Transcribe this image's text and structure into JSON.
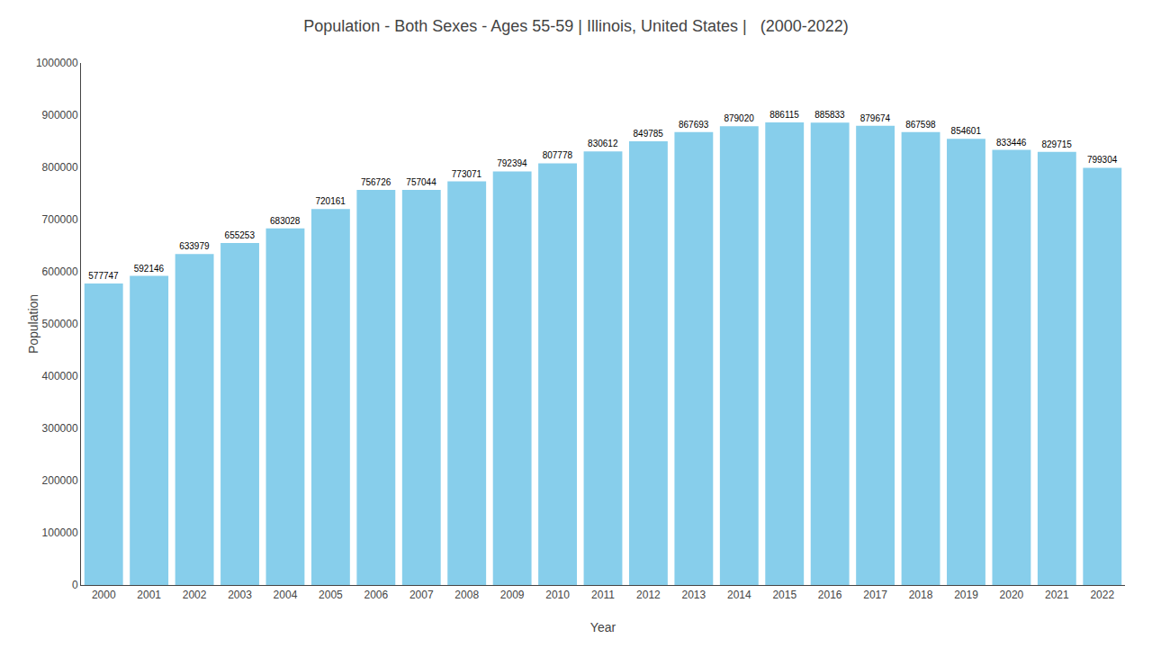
{
  "chart_data": {
    "type": "bar",
    "title": "Population - Both Sexes - Ages 55-59 | Illinois, United States |   (2000-2022)",
    "xlabel": "Year",
    "ylabel": "Population",
    "categories": [
      "2000",
      "2001",
      "2002",
      "2003",
      "2004",
      "2005",
      "2006",
      "2007",
      "2008",
      "2009",
      "2010",
      "2011",
      "2012",
      "2013",
      "2014",
      "2015",
      "2016",
      "2017",
      "2018",
      "2019",
      "2020",
      "2021",
      "2022"
    ],
    "values": [
      577747,
      592146,
      633979,
      655253,
      683028,
      720161,
      756726,
      757044,
      773071,
      792394,
      807778,
      830612,
      849785,
      867693,
      879020,
      886115,
      885833,
      879674,
      867598,
      854601,
      833446,
      829715,
      799304
    ],
    "color": "#87CEEB",
    "ylim": [
      0,
      1000000
    ],
    "yticks": [
      0,
      100000,
      200000,
      300000,
      400000,
      500000,
      600000,
      700000,
      800000,
      900000,
      1000000
    ],
    "data_labels": true,
    "grid": false
  }
}
